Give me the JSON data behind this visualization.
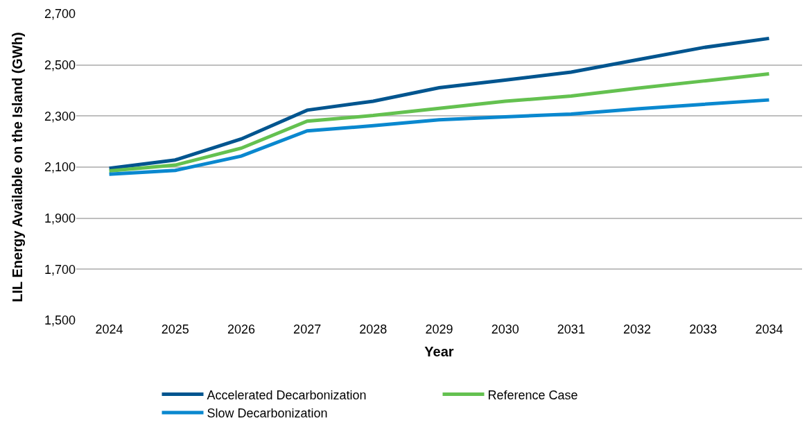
{
  "chart_data": {
    "type": "line",
    "xlabel": "Year",
    "ylabel": "LIL Energy Available on the Island (GWh)",
    "categories": [
      "2024",
      "2025",
      "2026",
      "2027",
      "2028",
      "2029",
      "2030",
      "2031",
      "2032",
      "2033",
      "2034"
    ],
    "series": [
      {
        "name": "Accelerated Decarbonization",
        "color": "#00558f",
        "values": [
          2095,
          2128,
          2210,
          2323,
          2358,
          2411,
          2441,
          2472,
          2520,
          2568,
          2604
        ]
      },
      {
        "name": "Reference Case",
        "color": "#64c150",
        "values": [
          2085,
          2108,
          2174,
          2280,
          2302,
          2330,
          2358,
          2378,
          2409,
          2437,
          2465
        ]
      },
      {
        "name": "Slow Decarbonization",
        "color": "#0a88cf",
        "values": [
          2072,
          2087,
          2143,
          2242,
          2262,
          2285,
          2297,
          2308,
          2328,
          2346,
          2363
        ]
      }
    ],
    "ylim": [
      1500,
      2700
    ],
    "yticks": [
      {
        "value": 1500,
        "label": "1,500"
      },
      {
        "value": 1700,
        "label": "1,700"
      },
      {
        "value": 1900,
        "label": "1,900"
      },
      {
        "value": 2100,
        "label": "2,100"
      },
      {
        "value": 2300,
        "label": "2,300"
      },
      {
        "value": 2500,
        "label": "2,500"
      },
      {
        "value": 2700,
        "label": "2,700"
      }
    ],
    "grid": "y",
    "legend": "bottom",
    "marker": "none",
    "line_style": "solid"
  }
}
